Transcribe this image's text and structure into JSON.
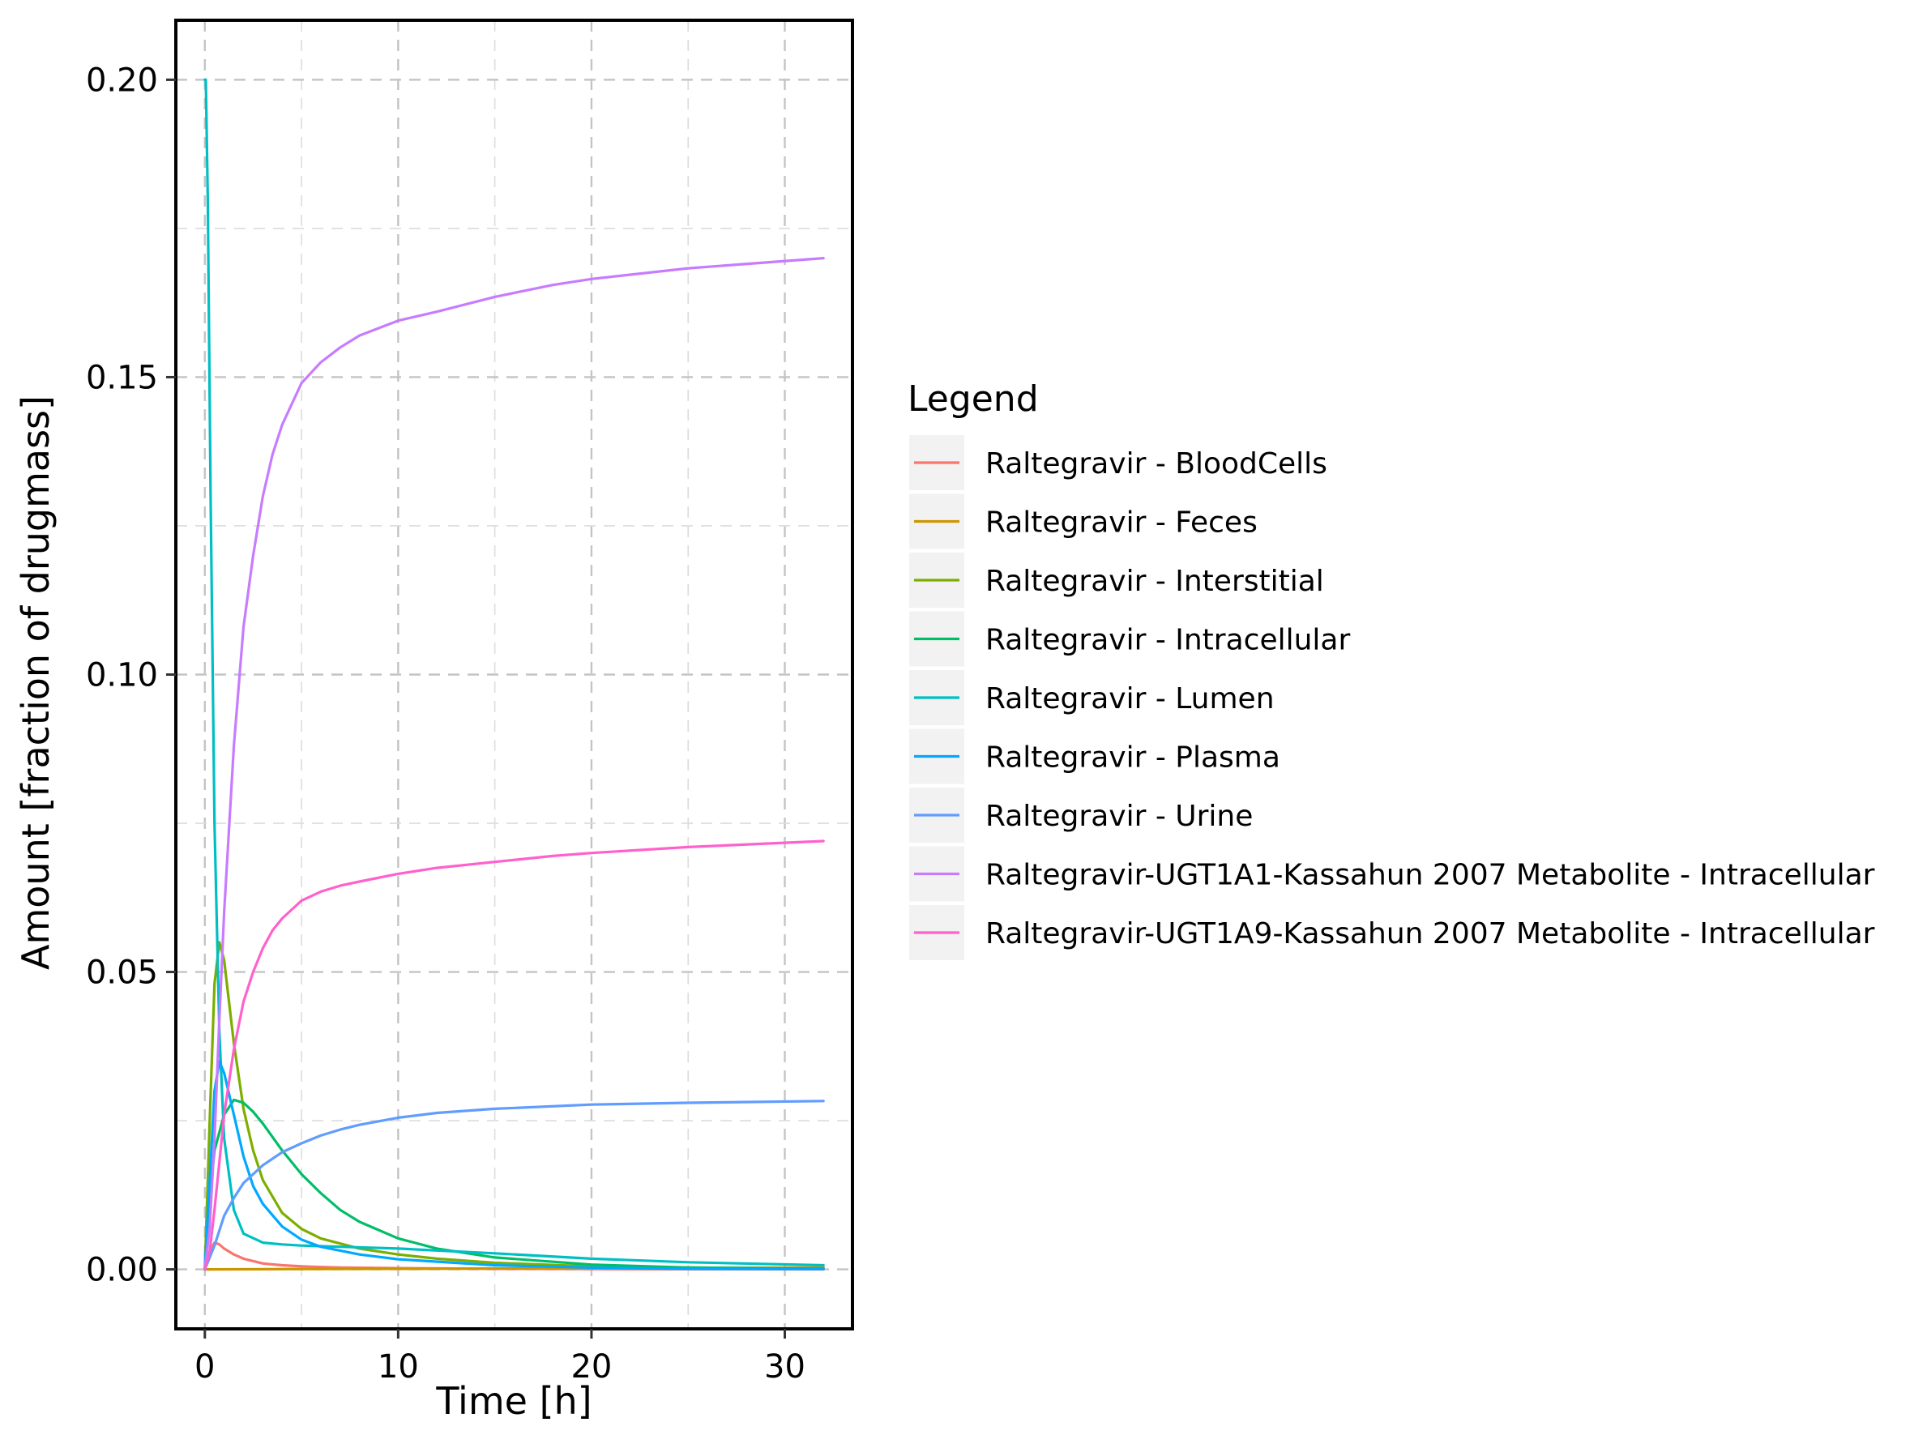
{
  "chart_data": {
    "type": "line",
    "xlabel": "Time [h]",
    "ylabel": "Amount [fraction of drugmass]",
    "xlim": [
      -1.5,
      33.5
    ],
    "ylim": [
      -0.01,
      0.21
    ],
    "x_ticks": [
      0,
      10,
      20,
      30
    ],
    "x_tick_labels": [
      "0",
      "10",
      "20",
      "30"
    ],
    "y_ticks": [
      0.0,
      0.05,
      0.1,
      0.15,
      0.2
    ],
    "y_tick_labels": [
      "0.00",
      "0.05",
      "0.10",
      "0.15",
      "0.20"
    ],
    "grid": true,
    "legend": {
      "title": "Legend",
      "position": "right"
    },
    "series": [
      {
        "name": "Raltegravir - BloodCells",
        "color": "#F8766D",
        "x": [
          0,
          0.25,
          0.5,
          0.75,
          1,
          1.5,
          2,
          3,
          4,
          5,
          7,
          10,
          15,
          20,
          25,
          32
        ],
        "y": [
          0,
          0.003,
          0.0045,
          0.0042,
          0.0035,
          0.0025,
          0.0018,
          0.001,
          0.0007,
          0.0005,
          0.0003,
          0.0002,
          0.0001,
          5e-05,
          3e-05,
          1e-05
        ]
      },
      {
        "name": "Raltegravir - Feces",
        "color": "#CD9600",
        "x": [
          0,
          5,
          10,
          15,
          20,
          25,
          32
        ],
        "y": [
          0,
          5e-05,
          0.0001,
          0.00015,
          0.0002,
          0.00025,
          0.0003
        ]
      },
      {
        "name": "Raltegravir - Interstitial",
        "color": "#7CAE00",
        "x": [
          0,
          0.25,
          0.5,
          0.75,
          1,
          1.25,
          1.5,
          2,
          2.5,
          3,
          4,
          5,
          6,
          8,
          10,
          12,
          15,
          20,
          25,
          32
        ],
        "y": [
          0,
          0.025,
          0.048,
          0.055,
          0.052,
          0.045,
          0.038,
          0.027,
          0.02,
          0.015,
          0.0095,
          0.0068,
          0.0052,
          0.0035,
          0.0025,
          0.0018,
          0.0011,
          0.0005,
          0.0003,
          0.0001
        ]
      },
      {
        "name": "Raltegravir - Intracellular",
        "color": "#00BE67",
        "x": [
          0,
          0.25,
          0.5,
          1,
          1.5,
          2,
          2.5,
          3,
          4,
          5,
          6,
          7,
          8,
          10,
          12,
          15,
          20,
          25,
          32
        ],
        "y": [
          0,
          0.012,
          0.02,
          0.026,
          0.0285,
          0.028,
          0.0265,
          0.0245,
          0.02,
          0.016,
          0.0128,
          0.01,
          0.008,
          0.0052,
          0.0035,
          0.002,
          0.0008,
          0.0003,
          0.0001
        ]
      },
      {
        "name": "Raltegravir - Lumen",
        "color": "#00BFC4",
        "x": [
          0,
          0.05,
          0.15,
          0.3,
          0.5,
          0.75,
          1,
          1.5,
          2,
          3,
          4,
          5,
          7,
          10,
          15,
          20,
          25,
          32
        ],
        "y": [
          0.2,
          0.2,
          0.18,
          0.13,
          0.075,
          0.04,
          0.022,
          0.01,
          0.006,
          0.0045,
          0.0042,
          0.004,
          0.0038,
          0.0035,
          0.0027,
          0.0018,
          0.0012,
          0.0007
        ]
      },
      {
        "name": "Raltegravir - Plasma",
        "color": "#00A9FF",
        "x": [
          0,
          0.25,
          0.5,
          0.75,
          1,
          1.5,
          2,
          2.5,
          3,
          4,
          5,
          6,
          8,
          10,
          15,
          20,
          25,
          32
        ],
        "y": [
          0,
          0.015,
          0.03,
          0.035,
          0.033,
          0.026,
          0.019,
          0.014,
          0.011,
          0.0072,
          0.005,
          0.0038,
          0.0025,
          0.0017,
          0.0007,
          0.0003,
          0.0001,
          5e-05
        ]
      },
      {
        "name": "Raltegravir - Urine",
        "color": "#619CFF",
        "x": [
          0,
          0.5,
          1,
          1.5,
          2,
          3,
          4,
          5,
          6,
          7,
          8,
          10,
          12,
          15,
          20,
          25,
          32
        ],
        "y": [
          0,
          0.004,
          0.009,
          0.012,
          0.0145,
          0.0175,
          0.0197,
          0.0212,
          0.0225,
          0.0235,
          0.0243,
          0.0255,
          0.0263,
          0.027,
          0.0277,
          0.028,
          0.0283
        ]
      },
      {
        "name": "Raltegravir-UGT1A1-Kassahun 2007 Metabolite - Intracellular",
        "color": "#C77CFF",
        "x": [
          0,
          0.25,
          0.5,
          0.75,
          1,
          1.5,
          2,
          2.5,
          3,
          3.5,
          4,
          5,
          6,
          7,
          8,
          10,
          12,
          15,
          18,
          20,
          25,
          32
        ],
        "y": [
          0,
          0.007,
          0.022,
          0.042,
          0.06,
          0.088,
          0.108,
          0.12,
          0.13,
          0.137,
          0.142,
          0.149,
          0.1525,
          0.155,
          0.157,
          0.1595,
          0.161,
          0.1635,
          0.1655,
          0.1665,
          0.1683,
          0.17
        ]
      },
      {
        "name": "Raltegravir-UGT1A9-Kassahun 2007 Metabolite - Intracellular",
        "color": "#FF61CC",
        "x": [
          0,
          0.25,
          0.5,
          0.75,
          1,
          1.5,
          2,
          2.5,
          3,
          3.5,
          4,
          5,
          6,
          7,
          8,
          10,
          12,
          15,
          18,
          20,
          25,
          32
        ],
        "y": [
          0,
          0.003,
          0.01,
          0.018,
          0.026,
          0.037,
          0.045,
          0.05,
          0.054,
          0.057,
          0.059,
          0.062,
          0.0635,
          0.0645,
          0.0652,
          0.0665,
          0.0675,
          0.0685,
          0.0695,
          0.07,
          0.071,
          0.072
        ]
      }
    ]
  }
}
